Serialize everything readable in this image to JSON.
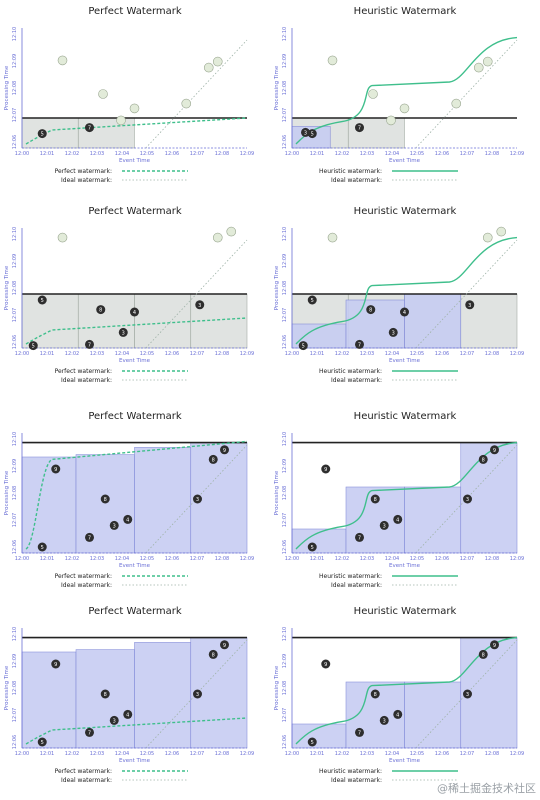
{
  "colors": {
    "axis": "#6a6fd6",
    "window_fill": "#c7cdf2",
    "window_gray": "#dde0de",
    "watermark": "#3fbf8c",
    "ideal": "#9fb3a8",
    "processing_line": "#222222",
    "dot_dark": "#2e2e2e",
    "dot_light": "#e2ebd9"
  },
  "x_ticks": [
    "12:00",
    "12:01",
    "12:02",
    "12:03",
    "12:04",
    "12:05",
    "12:06",
    "12:07",
    "12:08",
    "12:09"
  ],
  "y_ticks": [
    "12:10",
    "12:09",
    "12:08",
    "12:07",
    "12:06"
  ],
  "xlabel": "Event Time",
  "ylabel": "Processing Time",
  "footer_watermark": "@稀土掘金技术社区",
  "panels": [
    {
      "title": "Perfect Watermark",
      "legend": "Perfect watermark:",
      "ideal_legend": "Ideal watermark:",
      "type": "perfect"
    },
    {
      "title": "Heuristic Watermark",
      "legend": "Heuristic watermark:",
      "ideal_legend": "Ideal watermark:",
      "type": "heuristic"
    },
    {
      "title": "Perfect Watermark",
      "legend": "Perfect watermark:",
      "ideal_legend": "Ideal watermark:",
      "type": "perfect"
    },
    {
      "title": "Heuristic Watermark",
      "legend": "Heuristic watermark:",
      "ideal_legend": "Ideal watermark:",
      "type": "heuristic"
    },
    {
      "title": "Perfect Watermark",
      "legend": "Perfect watermark:",
      "ideal_legend": "Ideal watermark:",
      "type": "perfect"
    },
    {
      "title": "Heuristic Watermark",
      "legend": "Heuristic watermark:",
      "ideal_legend": "Ideal watermark:",
      "type": "heuristic"
    },
    {
      "title": "Perfect Watermark",
      "legend": "Perfect watermark:",
      "ideal_legend": "Ideal watermark:",
      "type": "perfect"
    },
    {
      "title": "Heuristic Watermark",
      "legend": "Heuristic watermark:",
      "ideal_legend": "Ideal watermark:",
      "type": "heuristic"
    }
  ]
}
